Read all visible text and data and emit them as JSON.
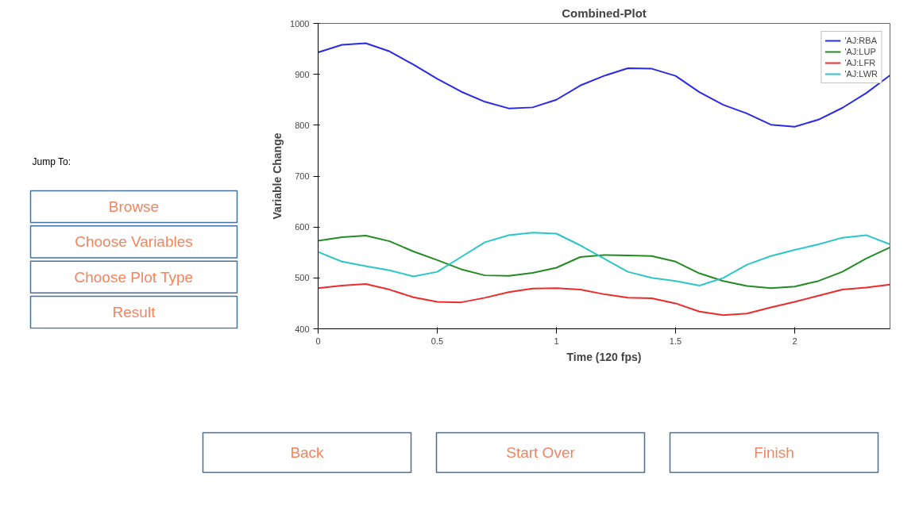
{
  "chart_data": [
    {
      "type": "line",
      "title": "Combined-Plot",
      "xlabel": "Time (120 fps)",
      "ylabel": "Variable Change",
      "x": [
        0,
        0.1,
        0.2,
        0.3,
        0.4,
        0.5,
        0.6,
        0.7,
        0.8,
        0.9,
        1.0,
        1.1,
        1.2,
        1.3,
        1.4,
        1.5,
        1.6,
        1.7,
        1.8,
        1.9,
        2.0,
        2.1,
        2.2,
        2.3,
        2.4
      ],
      "series": [
        {
          "name": "'AJ:RBA",
          "color": "#2a2ae6",
          "values": [
            943,
            958,
            961,
            945,
            919,
            891,
            866,
            846,
            833,
            835,
            850,
            878,
            897,
            912,
            911,
            897,
            865,
            840,
            823,
            801,
            797,
            811,
            834,
            863,
            898
          ]
        },
        {
          "name": "'AJ:LUP",
          "color": "#228b22",
          "values": [
            573,
            580,
            583,
            572,
            552,
            535,
            517,
            505,
            504,
            510,
            520,
            541,
            545,
            544,
            543,
            532,
            509,
            494,
            484,
            480,
            483,
            494,
            512,
            538,
            560
          ]
        },
        {
          "name": "'AJ:LFR",
          "color": "#ee2a2a",
          "values": [
            480,
            485,
            488,
            477,
            462,
            453,
            452,
            461,
            472,
            479,
            480,
            477,
            468,
            461,
            460,
            450,
            434,
            427,
            430,
            442,
            453,
            465,
            477,
            481,
            487
          ]
        },
        {
          "name": "'AJ:LWR",
          "color": "#2cc6c6",
          "values": [
            551,
            532,
            523,
            515,
            503,
            512,
            541,
            570,
            584,
            589,
            587,
            564,
            538,
            512,
            500,
            494,
            485,
            500,
            526,
            543,
            555,
            566,
            579,
            584,
            566
          ]
        }
      ],
      "xlim": [
        0,
        2.4
      ],
      "xticks": [
        0,
        0.5,
        1,
        1.5,
        2
      ],
      "ylim": [
        400,
        1000
      ],
      "yticks": [
        400,
        500,
        600,
        700,
        800,
        900,
        1000
      ],
      "grid": false,
      "legend": "top right",
      "marker": "none",
      "line_style": "solid"
    },
    {
      "type": "other",
      "annotations": [
        "Jump To:",
        "Browse",
        "Choose Variables",
        "Choose Plot Type",
        "Result",
        "Back",
        "Start Over",
        "Finish"
      ]
    }
  ]
}
